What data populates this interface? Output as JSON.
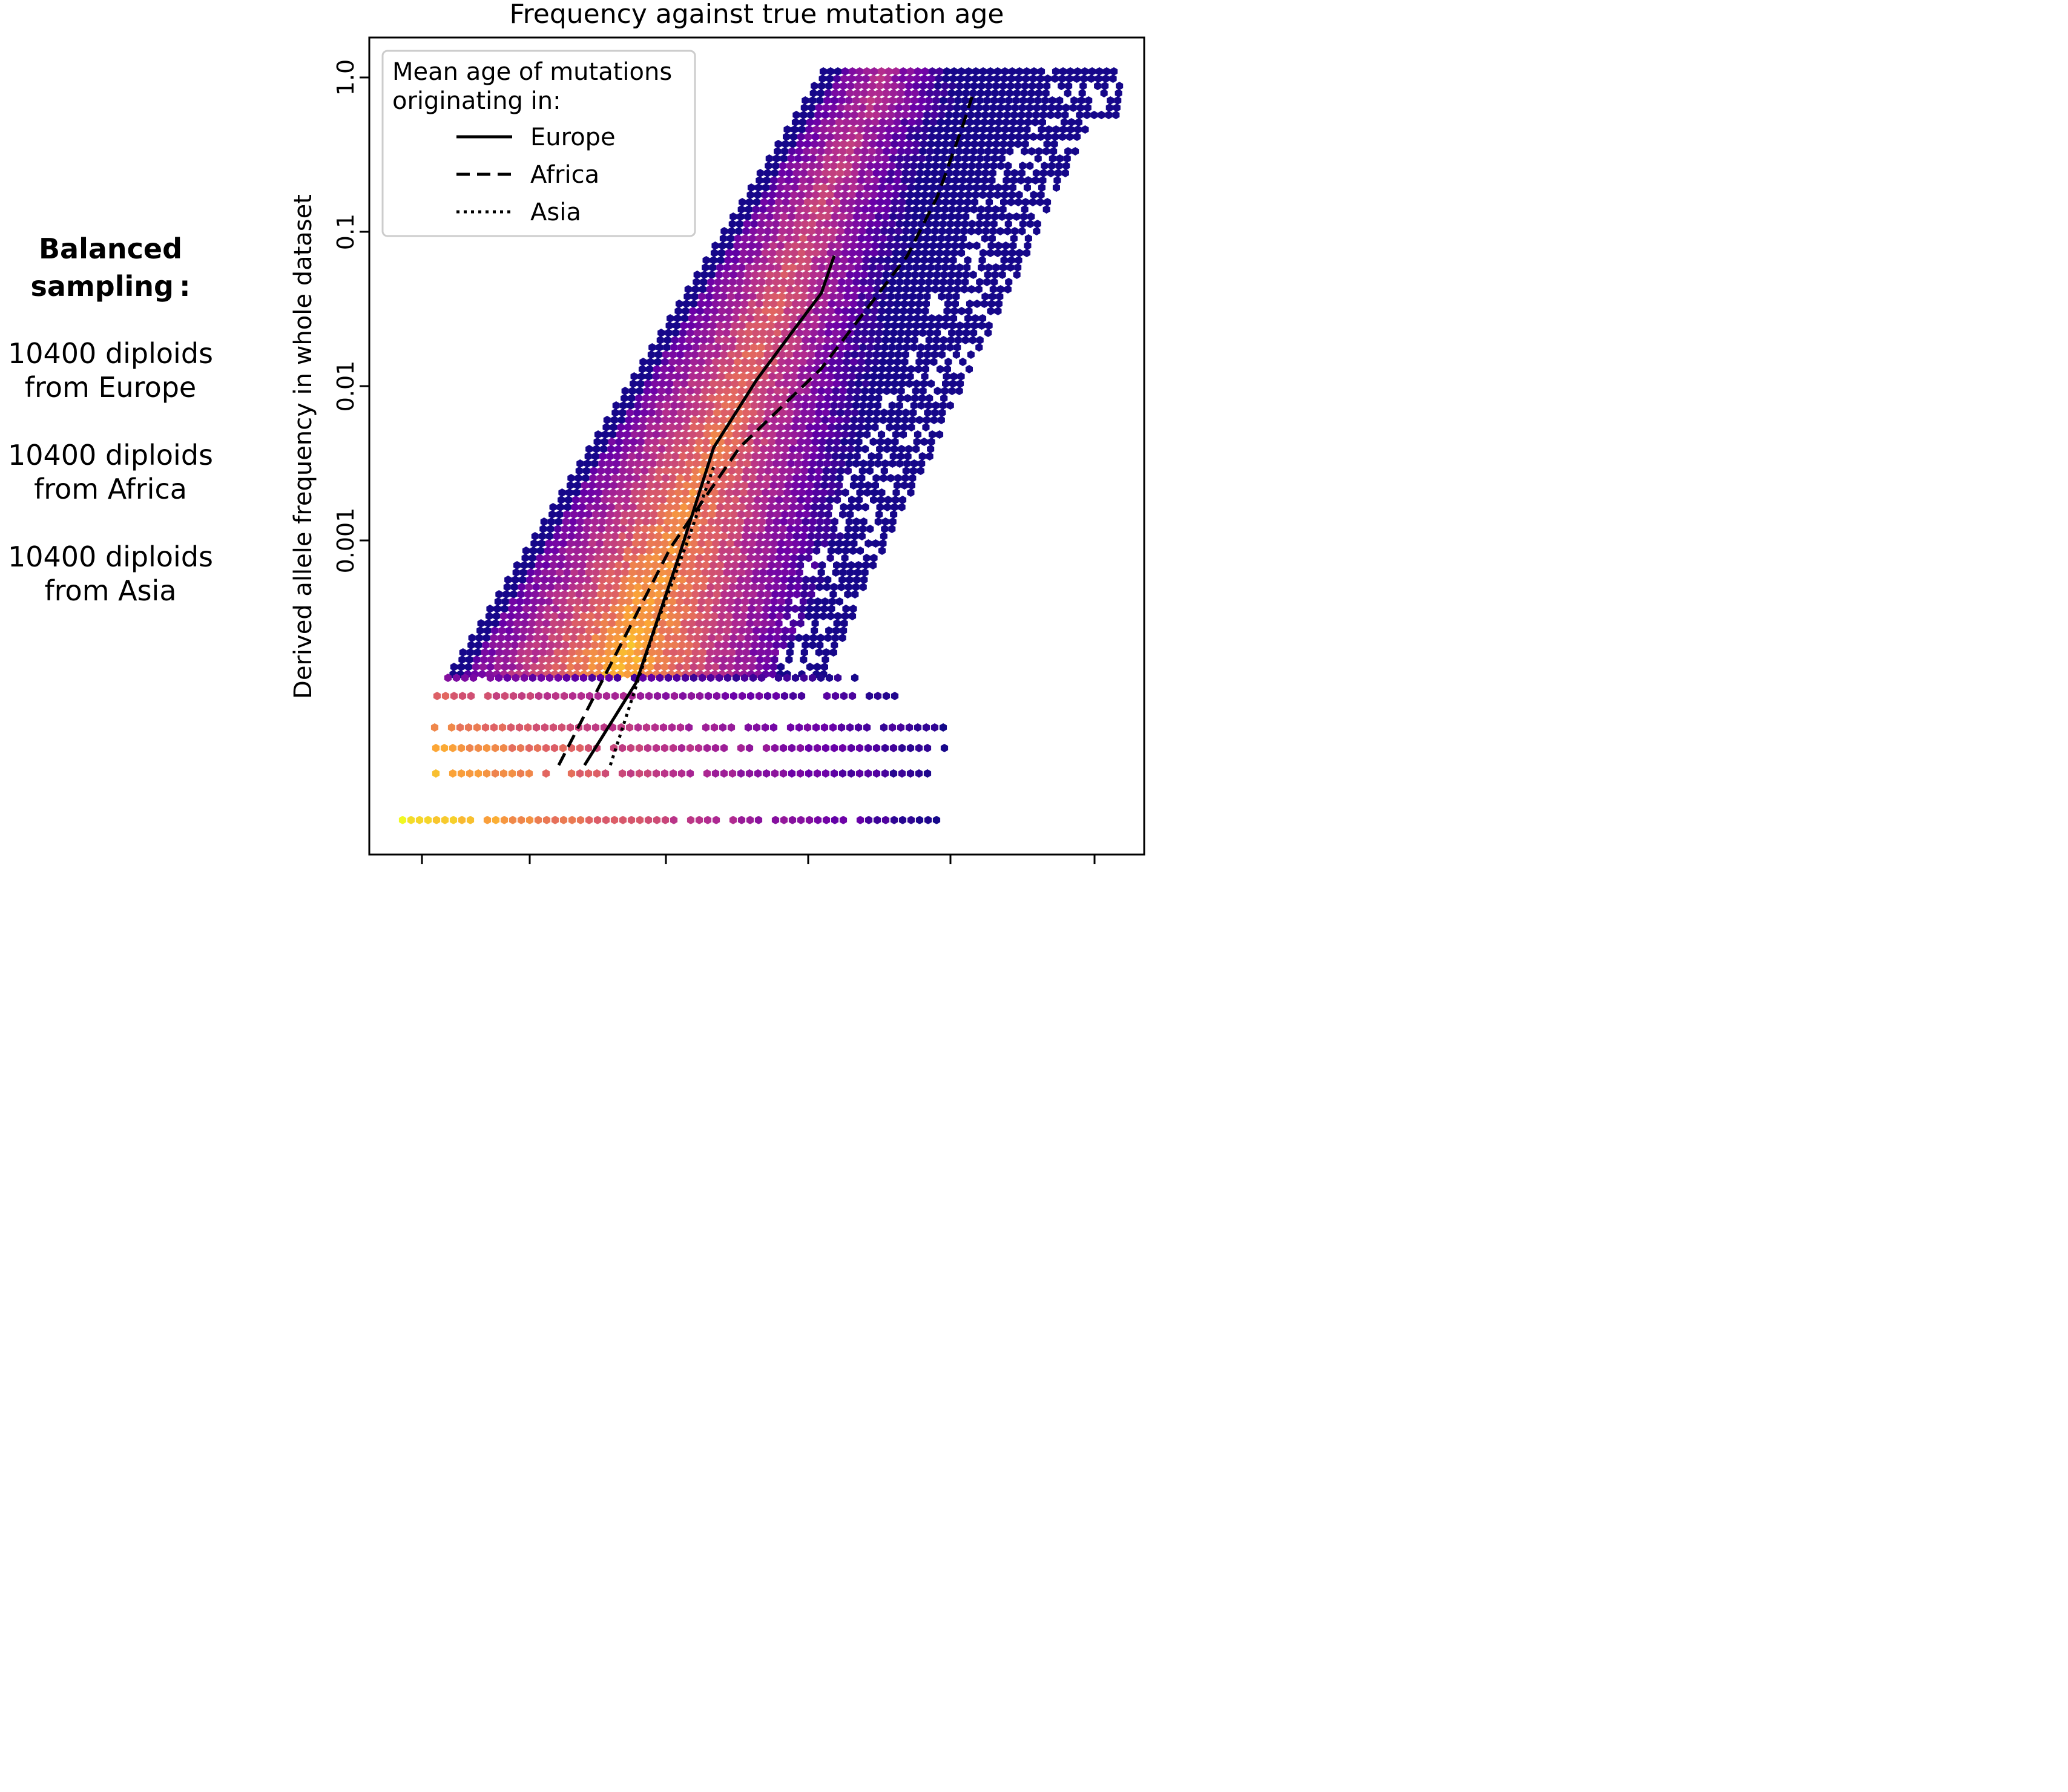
{
  "side_panel": {
    "heading_line1": "Balanced",
    "heading_line2": "sampling :",
    "lines": [
      "10400 diploids\nfrom Europe",
      "10400 diploids\nfrom Africa",
      "10400 diploids\nfrom Asia"
    ]
  },
  "chart_data": {
    "type": "heatmap",
    "subtype": "hexbin with overlaid mean-age lines",
    "title": "Frequency against true mutation age",
    "xlabel": "",
    "ylabel": "Derived allele frequency in whole dataset",
    "y_scale": "log",
    "y_ticks": [
      "1.0",
      "0.1",
      "0.01",
      "0.001"
    ],
    "x_tick_count": 6,
    "x_tick_labels": [],
    "colormap": "plasma",
    "colormap_stops": [
      "#0d0887",
      "#6a00a8",
      "#b12a90",
      "#e16462",
      "#fca636",
      "#f0f921"
    ],
    "legend": {
      "position": "top-left",
      "title": "Mean age of mutations\noriginating in:",
      "entries": [
        {
          "label": "Europe",
          "style": "solid"
        },
        {
          "label": "Africa",
          "style": "dashed"
        },
        {
          "label": "Asia",
          "style": "dotted"
        }
      ]
    },
    "series": [
      {
        "name": "Europe",
        "style": "solid",
        "points": [
          [
            0.0,
            3.5e-05
          ],
          [
            0.12,
            0.00012
          ],
          [
            0.22,
            0.0008
          ],
          [
            0.3,
            0.004
          ],
          [
            0.4,
            0.011
          ],
          [
            0.48,
            0.022
          ],
          [
            0.55,
            0.04
          ],
          [
            0.58,
            0.07
          ]
        ]
      },
      {
        "name": "Africa",
        "style": "dashed",
        "points": [
          [
            -0.06,
            3.5e-05
          ],
          [
            0.08,
            0.0002
          ],
          [
            0.2,
            0.0009
          ],
          [
            0.36,
            0.004
          ],
          [
            0.55,
            0.013
          ],
          [
            0.75,
            0.07
          ],
          [
            0.82,
            0.17
          ],
          [
            0.88,
            0.5
          ],
          [
            0.9,
            0.75
          ]
        ]
      },
      {
        "name": "Asia",
        "style": "dotted",
        "points": [
          [
            0.06,
            3.5e-05
          ],
          [
            0.16,
            0.00025
          ],
          [
            0.24,
            0.001
          ],
          [
            0.3,
            0.003
          ]
        ]
      }
    ]
  }
}
